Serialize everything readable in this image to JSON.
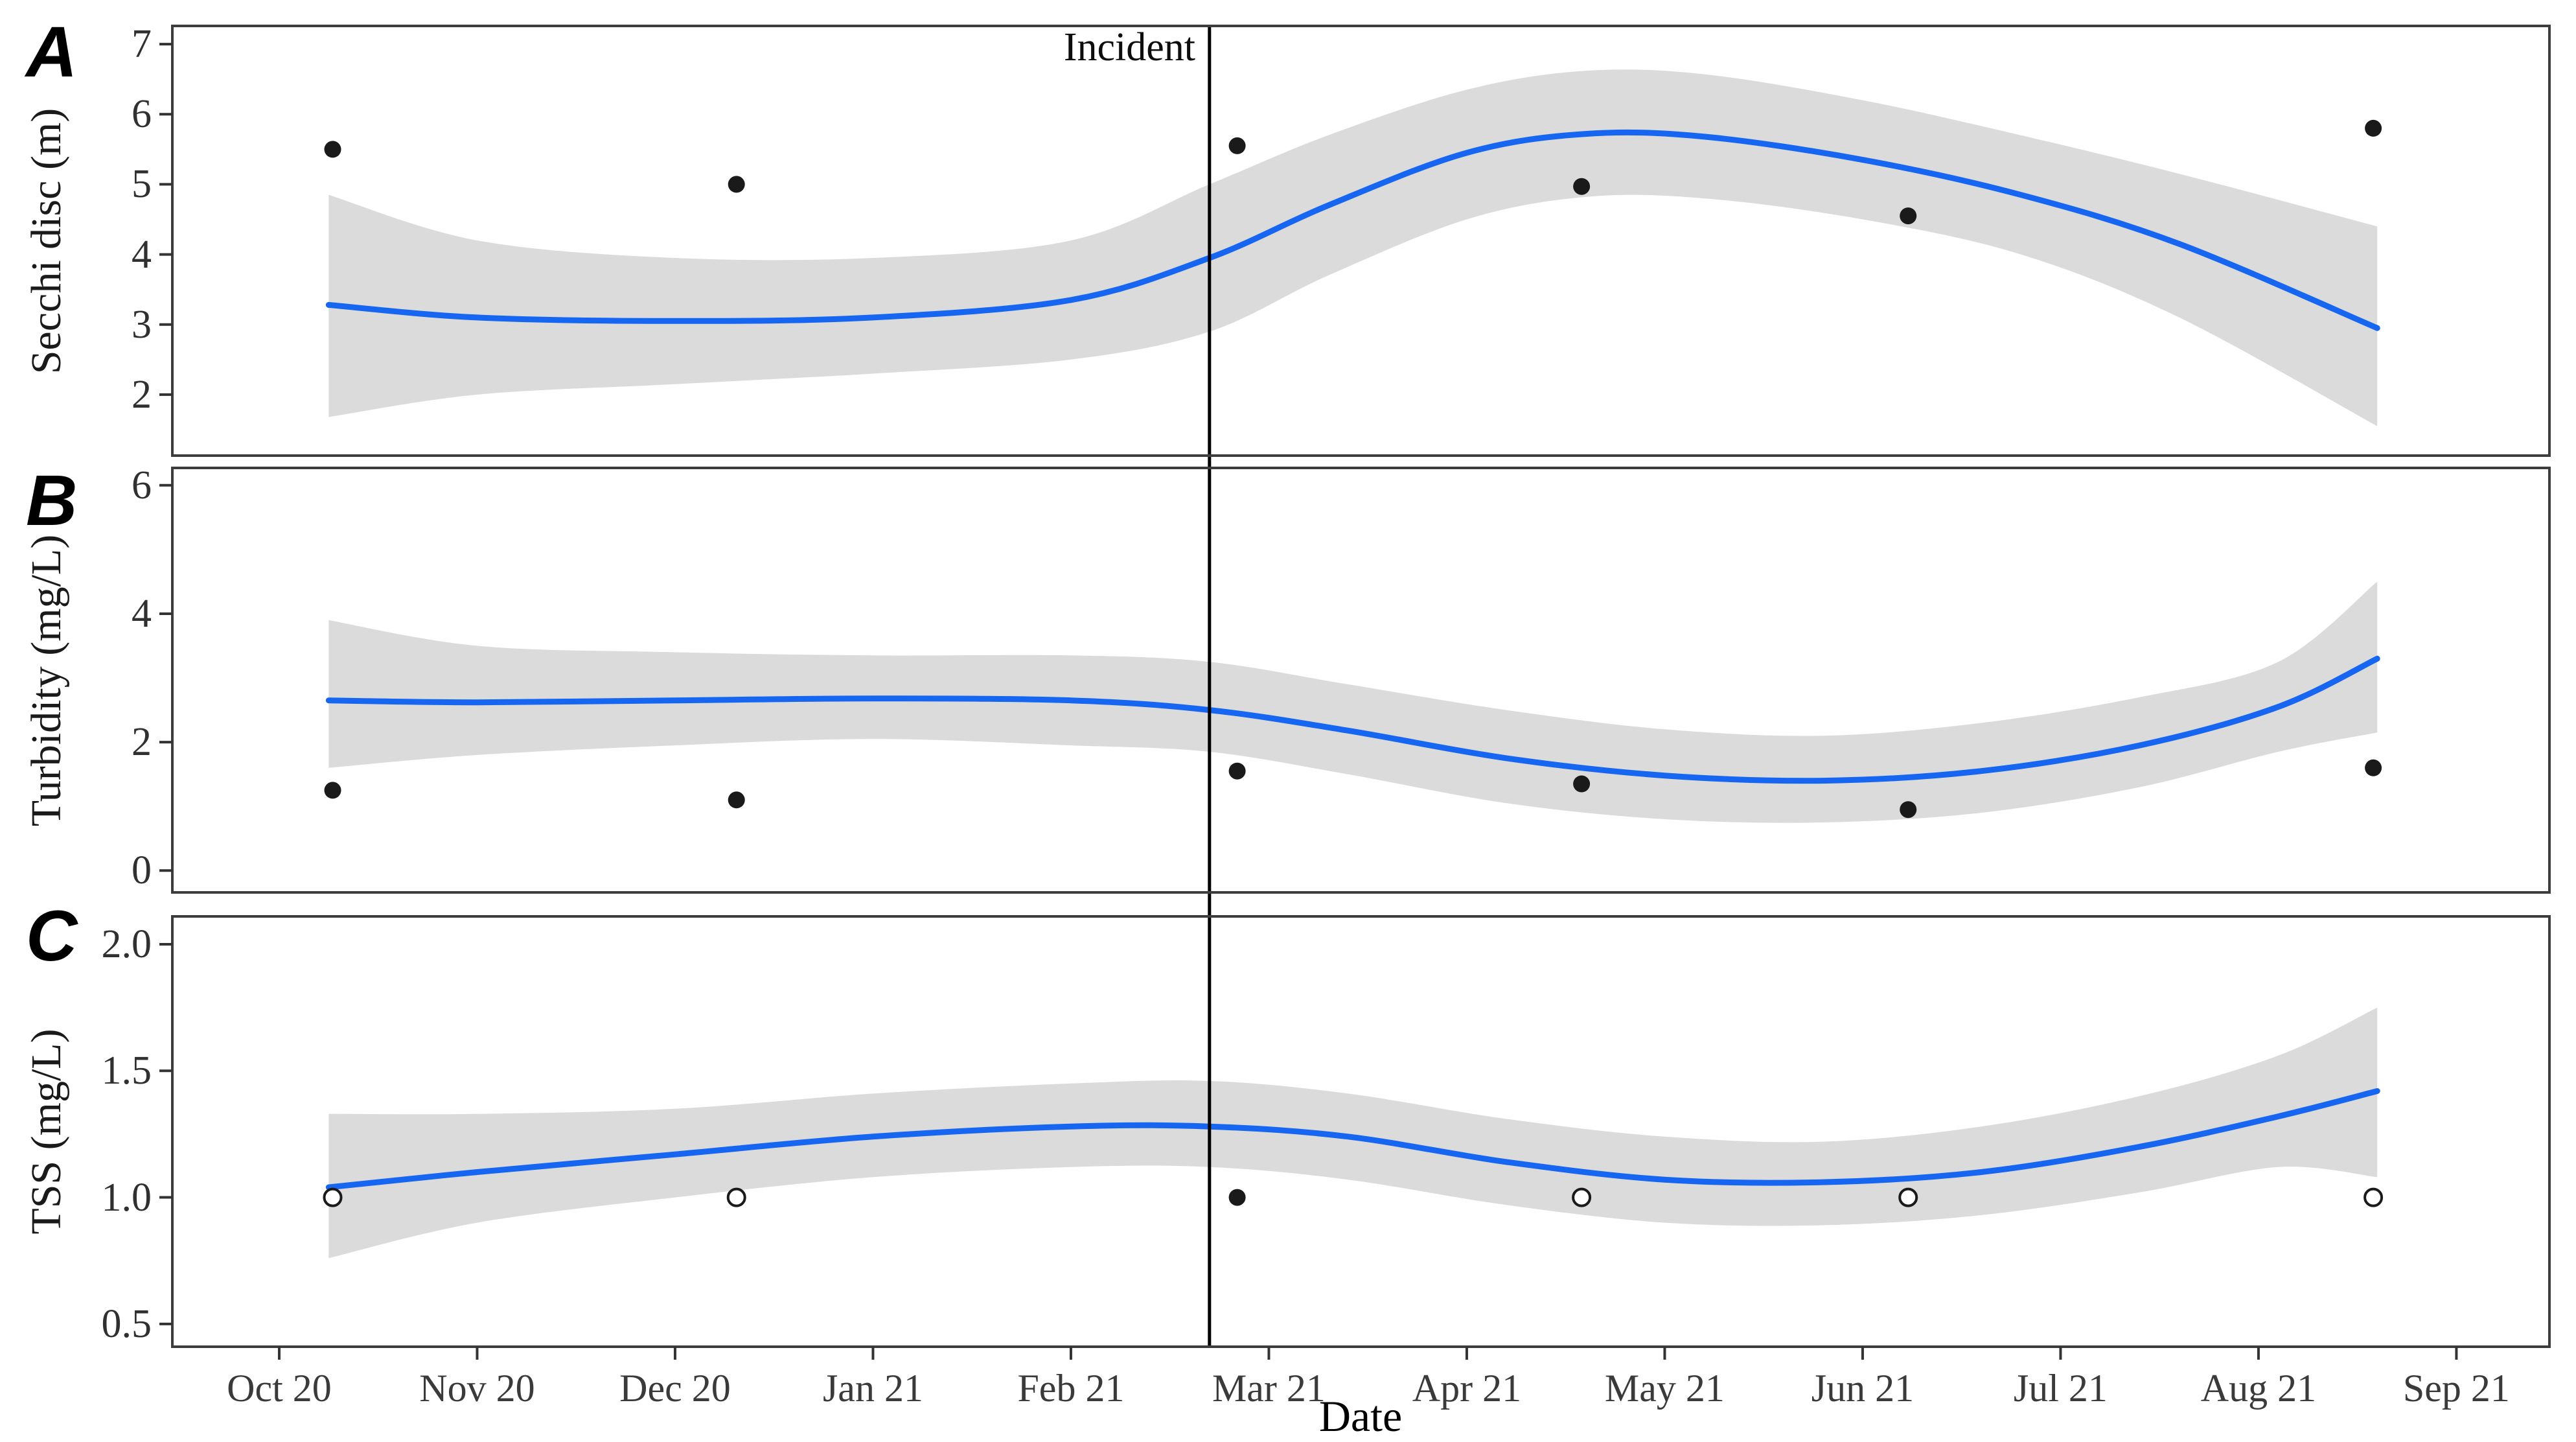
{
  "figure": {
    "xlabel": "Date",
    "incident_label": "Incident",
    "x_tick_labels": [
      "Oct 20",
      "Nov 20",
      "Dec 20",
      "Jan 21",
      "Feb 21",
      "Mar 21",
      "Apr 21",
      "May 21",
      "Jun 21",
      "Jul 21",
      "Aug 21",
      "Sep 21"
    ],
    "incident_x_month": 4.7
  },
  "colors": {
    "smooth_line": "#1766F2",
    "ribbon": "#DBDBDB",
    "point_fill": "#1A1A1A",
    "open_point_fill": "#FFFFFF",
    "panel_border": "#3D3D3D",
    "incident_line": "#000000",
    "tick_mark": "#333333"
  },
  "chart_data": [
    {
      "type": "line",
      "panel_label": "A",
      "ylabel": "Secchi disc (m)",
      "yticks": [
        2,
        3,
        4,
        5,
        6,
        7
      ],
      "ylim": [
        1.13,
        7.26
      ],
      "xlim_months": [
        -0.54,
        11.47
      ],
      "grid": false,
      "legend": "none",
      "points": {
        "x": [
          0.27,
          2.31,
          4.84,
          6.58,
          8.23,
          10.58
        ],
        "y": [
          5.5,
          5.0,
          5.55,
          4.97,
          4.55,
          5.8
        ],
        "filled": [
          true,
          true,
          true,
          true,
          true,
          true
        ]
      },
      "smooth": {
        "x": [
          0.25,
          1.0,
          2.0,
          3.0,
          4.0,
          4.7,
          5.3,
          6.0,
          6.6,
          7.2,
          8.0,
          8.8,
          9.6,
          10.6
        ],
        "y": [
          3.28,
          3.1,
          3.05,
          3.1,
          3.35,
          3.95,
          4.7,
          5.45,
          5.72,
          5.68,
          5.35,
          4.85,
          4.15,
          2.95
        ],
        "lo": [
          1.68,
          2.0,
          2.15,
          2.3,
          2.5,
          2.9,
          3.7,
          4.5,
          4.82,
          4.8,
          4.5,
          4.0,
          3.1,
          1.55
        ],
        "hi": [
          4.85,
          4.2,
          3.95,
          3.95,
          4.2,
          5.0,
          5.7,
          6.35,
          6.62,
          6.57,
          6.2,
          5.7,
          5.15,
          4.4
        ]
      }
    },
    {
      "type": "line",
      "panel_label": "B",
      "ylabel": "Turbidity (mg/L)",
      "yticks": [
        0,
        2,
        4,
        6
      ],
      "ylim": [
        -0.34,
        6.27
      ],
      "xlim_months": [
        -0.54,
        11.47
      ],
      "grid": false,
      "legend": "none",
      "points": {
        "x": [
          0.27,
          2.31,
          4.84,
          6.58,
          8.23,
          10.58
        ],
        "y": [
          1.25,
          1.1,
          1.55,
          1.35,
          0.95,
          1.6
        ],
        "filled": [
          true,
          true,
          true,
          true,
          true,
          true
        ]
      },
      "smooth": {
        "x": [
          0.25,
          1.0,
          2.0,
          3.0,
          4.0,
          4.7,
          5.4,
          6.2,
          7.0,
          7.8,
          8.6,
          9.4,
          10.1,
          10.6
        ],
        "y": [
          2.65,
          2.62,
          2.65,
          2.68,
          2.65,
          2.5,
          2.18,
          1.75,
          1.48,
          1.4,
          1.55,
          1.95,
          2.55,
          3.3
        ],
        "lo": [
          1.6,
          1.8,
          1.95,
          2.05,
          1.95,
          1.85,
          1.5,
          1.05,
          0.8,
          0.75,
          0.9,
          1.3,
          1.85,
          2.15
        ],
        "hi": [
          3.9,
          3.5,
          3.4,
          3.35,
          3.35,
          3.25,
          2.9,
          2.5,
          2.2,
          2.1,
          2.3,
          2.7,
          3.25,
          4.5
        ]
      }
    },
    {
      "type": "line",
      "panel_label": "C",
      "ylabel": "TSS (mg/L)",
      "yticks": [
        0.5,
        1.0,
        1.5,
        2.0
      ],
      "ylim": [
        0.41,
        2.11
      ],
      "xlim_months": [
        -0.54,
        11.47
      ],
      "grid": false,
      "legend": "none",
      "points": {
        "x": [
          0.27,
          2.31,
          4.84,
          6.58,
          8.23,
          10.58
        ],
        "y": [
          1.0,
          1.0,
          1.0,
          1.0,
          1.0,
          1.0
        ],
        "filled": [
          false,
          false,
          true,
          false,
          false,
          false
        ]
      },
      "smooth": {
        "x": [
          0.25,
          1.0,
          2.0,
          3.0,
          4.0,
          4.7,
          5.4,
          6.2,
          7.0,
          7.8,
          8.6,
          9.4,
          10.1,
          10.6
        ],
        "y": [
          1.04,
          1.1,
          1.17,
          1.24,
          1.28,
          1.28,
          1.24,
          1.14,
          1.07,
          1.06,
          1.1,
          1.2,
          1.32,
          1.42
        ],
        "lo": [
          0.76,
          0.9,
          1.0,
          1.08,
          1.12,
          1.12,
          1.07,
          0.97,
          0.9,
          0.89,
          0.93,
          1.02,
          1.12,
          1.08
        ],
        "hi": [
          1.33,
          1.33,
          1.35,
          1.41,
          1.45,
          1.46,
          1.41,
          1.31,
          1.24,
          1.22,
          1.28,
          1.4,
          1.56,
          1.75
        ]
      }
    }
  ]
}
